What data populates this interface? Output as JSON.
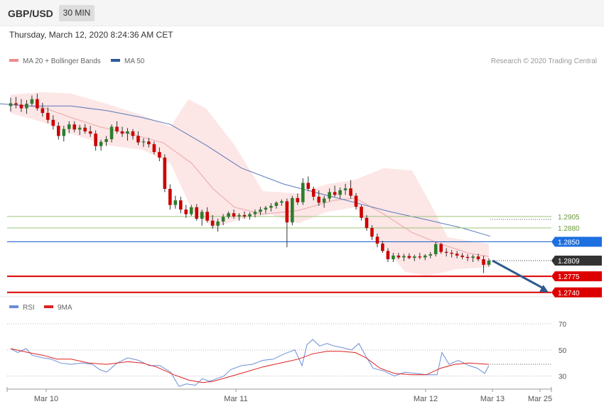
{
  "header": {
    "symbol": "GBP/USD",
    "timeframe": "30 MIN",
    "datetime": "Thursday, March 12, 2020 8:24:36 AM CET",
    "copyright": "Research © 2020 Trading Central"
  },
  "legend_main": [
    {
      "label": "MA 20 + Bollinger Bands",
      "color": "#ef8b8b"
    },
    {
      "label": "MA 50",
      "color": "#2e5a9c"
    }
  ],
  "legend_rsi": [
    {
      "label": "RSI",
      "color": "#6b8fd6"
    },
    {
      "label": "9MA",
      "color": "#e02020"
    }
  ],
  "colors": {
    "up": "#2e7d2e",
    "down": "#cc0000",
    "band": "#fde6e6",
    "ma20": "#e9a8a8",
    "ma50": "#5a7ab8",
    "resistance": "#9cc47a",
    "support": "#dd0000",
    "pivot": "#1c5dd0",
    "arrow": "#2e5a8e",
    "last": "#333333"
  },
  "chart_data": [
    {
      "type": "candlestick",
      "title": "",
      "x_tick_labels": [
        "Mar 10",
        "Mar 11",
        "Mar 12",
        "Mar 13",
        "Mar 25"
      ],
      "ylim": [
        1.2735,
        1.3198
      ],
      "candles": [
        [
          1.3145,
          1.3163,
          1.3133,
          1.3151
        ],
        [
          1.3151,
          1.3165,
          1.314,
          1.3148
        ],
        [
          1.3148,
          1.316,
          1.3132,
          1.314
        ],
        [
          1.314,
          1.3158,
          1.3128,
          1.315
        ],
        [
          1.315,
          1.3168,
          1.3145,
          1.316
        ],
        [
          1.316,
          1.3172,
          1.3135,
          1.314
        ],
        [
          1.314,
          1.3152,
          1.3122,
          1.313
        ],
        [
          1.313,
          1.3142,
          1.3108,
          1.3115
        ],
        [
          1.3115,
          1.3125,
          1.3094,
          1.3102
        ],
        [
          1.3102,
          1.311,
          1.3072,
          1.308
        ],
        [
          1.308,
          1.3102,
          1.3068,
          1.3095
        ],
        [
          1.3095,
          1.3112,
          1.3086,
          1.3105
        ],
        [
          1.3105,
          1.3112,
          1.3088,
          1.3094
        ],
        [
          1.3094,
          1.3104,
          1.3082,
          1.3098
        ],
        [
          1.3098,
          1.3106,
          1.3085,
          1.309
        ],
        [
          1.309,
          1.3102,
          1.3078,
          1.3085
        ],
        [
          1.3085,
          1.3092,
          1.3048,
          1.3058
        ],
        [
          1.3058,
          1.3072,
          1.3048,
          1.3067
        ],
        [
          1.3067,
          1.308,
          1.3058,
          1.3073
        ],
        [
          1.3073,
          1.3105,
          1.3066,
          1.31
        ],
        [
          1.31,
          1.3112,
          1.3085,
          1.309
        ],
        [
          1.309,
          1.31,
          1.3078,
          1.3085
        ],
        [
          1.3085,
          1.3097,
          1.307,
          1.309
        ],
        [
          1.309,
          1.3095,
          1.3072,
          1.308
        ],
        [
          1.308,
          1.309,
          1.306,
          1.3066
        ],
        [
          1.3066,
          1.3075,
          1.3056,
          1.3068
        ],
        [
          1.3068,
          1.3076,
          1.3055,
          1.3062
        ],
        [
          1.3062,
          1.3068,
          1.304,
          1.3045
        ],
        [
          1.3045,
          1.3055,
          1.3025,
          1.3033
        ],
        [
          1.3033,
          1.304,
          1.2958,
          1.2965
        ],
        [
          1.2965,
          1.2975,
          1.292,
          1.293
        ],
        [
          1.293,
          1.295,
          1.2922,
          1.294
        ],
        [
          1.294,
          1.2948,
          1.2912,
          1.292
        ],
        [
          1.292,
          1.293,
          1.2902,
          1.291
        ],
        [
          1.291,
          1.293,
          1.2906,
          1.2925
        ],
        [
          1.2925,
          1.2932,
          1.2896,
          1.29
        ],
        [
          1.29,
          1.292,
          1.2885,
          1.2915
        ],
        [
          1.2915,
          1.2925,
          1.2892,
          1.2896
        ],
        [
          1.2896,
          1.2908,
          1.2878,
          1.2885
        ],
        [
          1.2885,
          1.29,
          1.2872,
          1.2894
        ],
        [
          1.2894,
          1.291,
          1.2886,
          1.2904
        ],
        [
          1.2904,
          1.2916,
          1.29,
          1.2912
        ],
        [
          1.2912,
          1.292,
          1.29,
          1.2905
        ],
        [
          1.2905,
          1.2912,
          1.2896,
          1.2908
        ],
        [
          1.2908,
          1.2916,
          1.29,
          1.2905
        ],
        [
          1.2905,
          1.2914,
          1.2898,
          1.291
        ],
        [
          1.291,
          1.292,
          1.2903,
          1.2915
        ],
        [
          1.2915,
          1.2926,
          1.2908,
          1.292
        ],
        [
          1.292,
          1.2928,
          1.2912,
          1.2924
        ],
        [
          1.2924,
          1.2934,
          1.2916,
          1.2928
        ],
        [
          1.2928,
          1.2938,
          1.2922,
          1.2935
        ],
        [
          1.2935,
          1.2942,
          1.2928,
          1.2938
        ],
        [
          1.2938,
          1.2944,
          1.2838,
          1.2892
        ],
        [
          1.2892,
          1.295,
          1.2886,
          1.2945
        ],
        [
          1.2945,
          1.2955,
          1.293,
          1.2936
        ],
        [
          1.2936,
          1.2988,
          1.293,
          1.2978
        ],
        [
          1.2978,
          1.2992,
          1.296,
          1.2965
        ],
        [
          1.2965,
          1.297,
          1.294,
          1.2948
        ],
        [
          1.2948,
          1.2962,
          1.2928,
          1.2935
        ],
        [
          1.2935,
          1.295,
          1.2924,
          1.2944
        ],
        [
          1.2944,
          1.2966,
          1.2938,
          1.2958
        ],
        [
          1.2958,
          1.2972,
          1.2948,
          1.2952
        ],
        [
          1.2952,
          1.2968,
          1.2944,
          1.2962
        ],
        [
          1.2962,
          1.2976,
          1.2952,
          1.2966
        ],
        [
          1.2966,
          1.2984,
          1.2944,
          1.295
        ],
        [
          1.295,
          1.2956,
          1.292,
          1.2926
        ],
        [
          1.2926,
          1.293,
          1.2896,
          1.2902
        ],
        [
          1.2902,
          1.2908,
          1.2874,
          1.288
        ],
        [
          1.288,
          1.2886,
          1.2854,
          1.2861
        ],
        [
          1.2861,
          1.2868,
          1.2838,
          1.2846
        ],
        [
          1.2846,
          1.2852,
          1.2826,
          1.283
        ],
        [
          1.283,
          1.2836,
          1.2806,
          1.2812
        ],
        [
          1.2812,
          1.2826,
          1.2806,
          1.282
        ],
        [
          1.282,
          1.2826,
          1.2812,
          1.2816
        ],
        [
          1.2816,
          1.2824,
          1.2808,
          1.2819
        ],
        [
          1.2819,
          1.2825,
          1.2812,
          1.2815
        ],
        [
          1.2815,
          1.2822,
          1.2808,
          1.2818
        ],
        [
          1.2818,
          1.2826,
          1.2812,
          1.2816
        ],
        [
          1.2816,
          1.2823,
          1.281,
          1.282
        ],
        [
          1.282,
          1.2828,
          1.2814,
          1.2823
        ],
        [
          1.2823,
          1.285,
          1.2818,
          1.2845
        ],
        [
          1.2845,
          1.2848,
          1.2824,
          1.2828
        ],
        [
          1.2828,
          1.2836,
          1.2818,
          1.2826
        ],
        [
          1.2826,
          1.2832,
          1.2816,
          1.2824
        ],
        [
          1.2824,
          1.283,
          1.2814,
          1.282
        ],
        [
          1.282,
          1.2826,
          1.2812,
          1.2817
        ],
        [
          1.2817,
          1.2823,
          1.2808,
          1.2815
        ],
        [
          1.2815,
          1.2822,
          1.2806,
          1.2818
        ],
        [
          1.2818,
          1.2824,
          1.2808,
          1.2812
        ],
        [
          1.2812,
          1.282,
          1.2782,
          1.28
        ],
        [
          1.28,
          1.2814,
          1.2796,
          1.2809
        ]
      ],
      "ma50": [
        [
          0,
          1.315
        ],
        [
          40,
          1.3145
        ],
        [
          100,
          1.3145
        ],
        [
          150,
          1.3135
        ],
        [
          200,
          1.312
        ],
        [
          240,
          1.3105
        ],
        [
          290,
          1.306
        ],
        [
          340,
          1.301
        ],
        [
          400,
          1.2975
        ],
        [
          450,
          1.2955
        ],
        [
          500,
          1.2935
        ],
        [
          550,
          1.2915
        ],
        [
          600,
          1.2898
        ],
        [
          650,
          1.288
        ],
        [
          690,
          1.2862
        ]
      ],
      "ma20": [
        [
          15,
          1.3148
        ],
        [
          60,
          1.3142
        ],
        [
          100,
          1.312
        ],
        [
          140,
          1.31
        ],
        [
          190,
          1.3082
        ],
        [
          230,
          1.3065
        ],
        [
          270,
          1.302
        ],
        [
          300,
          1.2965
        ],
        [
          330,
          1.2925
        ],
        [
          370,
          1.291
        ],
        [
          420,
          1.2918
        ],
        [
          470,
          1.294
        ],
        [
          500,
          1.2945
        ],
        [
          540,
          1.291
        ],
        [
          580,
          1.287
        ],
        [
          620,
          1.2845
        ],
        [
          660,
          1.2825
        ],
        [
          688,
          1.2818
        ]
      ],
      "bb_upper": [
        [
          15,
          1.317
        ],
        [
          60,
          1.3175
        ],
        [
          100,
          1.3172
        ],
        [
          150,
          1.315
        ],
        [
          200,
          1.3125
        ],
        [
          240,
          1.31
        ],
        [
          265,
          1.316
        ],
        [
          290,
          1.314
        ],
        [
          330,
          1.306
        ],
        [
          370,
          1.296
        ],
        [
          420,
          1.2955
        ],
        [
          460,
          1.2975
        ],
        [
          500,
          1.2985
        ],
        [
          540,
          1.301
        ],
        [
          580,
          1.3005
        ],
        [
          605,
          1.2935
        ],
        [
          630,
          1.286
        ],
        [
          688,
          1.2845
        ]
      ],
      "bb_lower": [
        [
          15,
          1.313
        ],
        [
          60,
          1.311
        ],
        [
          100,
          1.3085
        ],
        [
          150,
          1.306
        ],
        [
          200,
          1.305
        ],
        [
          240,
          1.302
        ],
        [
          270,
          1.292
        ],
        [
          300,
          1.288
        ],
        [
          340,
          1.29
        ],
        [
          380,
          1.291
        ],
        [
          420,
          1.289
        ],
        [
          460,
          1.2915
        ],
        [
          500,
          1.2925
        ],
        [
          540,
          1.284
        ],
        [
          570,
          1.2785
        ],
        [
          600,
          1.2775
        ],
        [
          640,
          1.279
        ],
        [
          688,
          1.2795
        ]
      ],
      "levels": [
        {
          "value": 1.2905,
          "label": "1.2905",
          "kind": "resistance"
        },
        {
          "value": 1.288,
          "label": "1.2880",
          "kind": "resistance"
        },
        {
          "value": 1.285,
          "label": "1.2850",
          "kind": "pivot"
        },
        {
          "value": 1.2809,
          "label": "1.2809",
          "kind": "last"
        },
        {
          "value": 1.2775,
          "label": "1.2775",
          "kind": "support"
        },
        {
          "value": 1.274,
          "label": "1.2740",
          "kind": "support"
        }
      ],
      "forecast_arrow": [
        [
          693,
          1.2809
        ],
        [
          772,
          1.274
        ]
      ]
    },
    {
      "type": "line",
      "title": "",
      "ylim": [
        20,
        76
      ],
      "y_ticks": [
        70,
        50,
        30
      ],
      "rsi": [
        [
          15,
          51
        ],
        [
          25,
          48
        ],
        [
          37,
          51
        ],
        [
          45,
          46
        ],
        [
          60,
          44
        ],
        [
          72,
          43
        ],
        [
          85,
          40
        ],
        [
          100,
          39
        ],
        [
          115,
          40
        ],
        [
          130,
          39
        ],
        [
          140,
          35
        ],
        [
          150,
          33
        ],
        [
          165,
          40
        ],
        [
          180,
          44
        ],
        [
          195,
          42
        ],
        [
          210,
          38
        ],
        [
          225,
          38
        ],
        [
          240,
          33
        ],
        [
          252,
          22
        ],
        [
          262,
          24
        ],
        [
          275,
          23
        ],
        [
          285,
          28
        ],
        [
          295,
          26
        ],
        [
          305,
          28
        ],
        [
          315,
          30
        ],
        [
          325,
          35
        ],
        [
          340,
          38
        ],
        [
          355,
          39
        ],
        [
          370,
          42
        ],
        [
          385,
          43
        ],
        [
          400,
          47
        ],
        [
          415,
          50
        ],
        [
          425,
          38
        ],
        [
          432,
          54
        ],
        [
          440,
          58
        ],
        [
          450,
          53
        ],
        [
          460,
          55
        ],
        [
          470,
          53
        ],
        [
          480,
          52
        ],
        [
          495,
          50
        ],
        [
          505,
          55
        ],
        [
          515,
          45
        ],
        [
          525,
          36
        ],
        [
          540,
          34
        ],
        [
          555,
          30
        ],
        [
          570,
          33
        ],
        [
          585,
          32
        ],
        [
          600,
          31
        ],
        [
          615,
          31
        ],
        [
          622,
          48
        ],
        [
          632,
          39
        ],
        [
          645,
          42
        ],
        [
          660,
          38
        ],
        [
          672,
          36
        ],
        [
          682,
          32
        ],
        [
          688,
          38
        ]
      ],
      "ma9": [
        [
          15,
          51
        ],
        [
          40,
          48
        ],
        [
          60,
          46
        ],
        [
          80,
          43
        ],
        [
          100,
          43
        ],
        [
          125,
          40
        ],
        [
          150,
          39
        ],
        [
          180,
          41
        ],
        [
          200,
          40
        ],
        [
          220,
          37
        ],
        [
          245,
          31
        ],
        [
          265,
          27
        ],
        [
          285,
          25
        ],
        [
          300,
          26
        ],
        [
          320,
          29
        ],
        [
          345,
          33
        ],
        [
          370,
          37
        ],
        [
          395,
          40
        ],
        [
          420,
          43
        ],
        [
          440,
          47
        ],
        [
          460,
          49
        ],
        [
          480,
          49
        ],
        [
          500,
          48
        ],
        [
          515,
          44
        ],
        [
          535,
          36
        ],
        [
          555,
          32
        ],
        [
          580,
          31
        ],
        [
          600,
          31
        ],
        [
          620,
          36
        ],
        [
          640,
          39
        ],
        [
          660,
          40
        ],
        [
          688,
          39
        ]
      ]
    }
  ]
}
